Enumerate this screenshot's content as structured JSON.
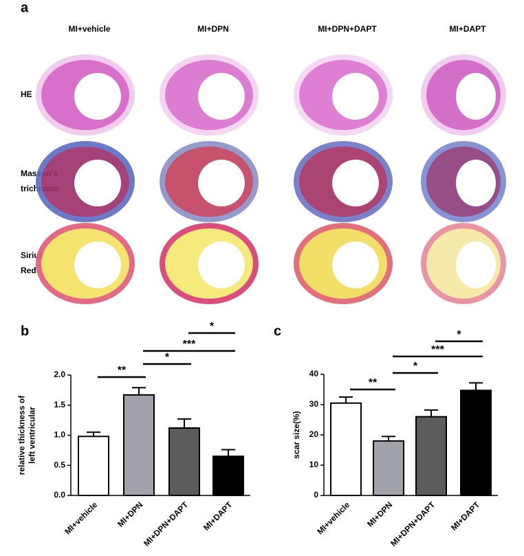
{
  "panel_a": {
    "label": "a",
    "columns": [
      "MI+vehicle",
      "MI+DPN",
      "MI+DPN+DAPT",
      "MI+DAPT"
    ],
    "rows": [
      [
        "HE"
      ],
      [
        "Masson's",
        "trichrome"
      ],
      [
        "Sirius",
        "Red"
      ]
    ]
  },
  "chart_data": [
    {
      "type": "bar",
      "panel_label": "b",
      "ylabel": [
        "relative thickness of",
        "left ventricular"
      ],
      "categories": [
        "MI+vehicle",
        "MI+DPN",
        "MI+DPN+DAPT",
        "MI+DAPT"
      ],
      "values": [
        0.98,
        1.67,
        1.12,
        0.65
      ],
      "errors": [
        0.07,
        0.12,
        0.15,
        0.11
      ],
      "colors": [
        "#ffffff",
        "#a2a2aa",
        "#5c5c5c",
        "#000000"
      ],
      "ylim": [
        0,
        2
      ],
      "yticks": [
        {
          "value": 0,
          "label": "0.0"
        },
        {
          "value": 0.5,
          "label": "0.5"
        },
        {
          "value": 1,
          "label": "1.0"
        },
        {
          "value": 1.5,
          "label": "1.5"
        },
        {
          "value": 2,
          "label": "2.0"
        }
      ],
      "annotations": [
        {
          "label": "**",
          "from": 0,
          "to": 1
        },
        {
          "label": "*",
          "from": 1,
          "to": 2
        },
        {
          "label": "***",
          "from": 1,
          "to": 3
        },
        {
          "label": "*",
          "from": 2,
          "to": 3
        }
      ]
    },
    {
      "type": "bar",
      "panel_label": "c",
      "ylabel": [
        "scar size(%)"
      ],
      "categories": [
        "MI+vehicle",
        "MI+DPN",
        "MI+DPN+DAPT",
        "MI+DAPT"
      ],
      "values": [
        30.5,
        18,
        26,
        34.7
      ],
      "errors": [
        2,
        1.5,
        2.2,
        2.5
      ],
      "colors": [
        "#ffffff",
        "#a2a2aa",
        "#5c5c5c",
        "#000000"
      ],
      "ylim": [
        0,
        40
      ],
      "yticks": [
        0,
        10,
        20,
        30,
        40
      ],
      "annotations": [
        {
          "label": "**",
          "from": 0,
          "to": 1
        },
        {
          "label": "*",
          "from": 1,
          "to": 2
        },
        {
          "label": "***",
          "from": 1,
          "to": 3
        },
        {
          "label": "*",
          "from": 2,
          "to": 3
        }
      ]
    }
  ]
}
